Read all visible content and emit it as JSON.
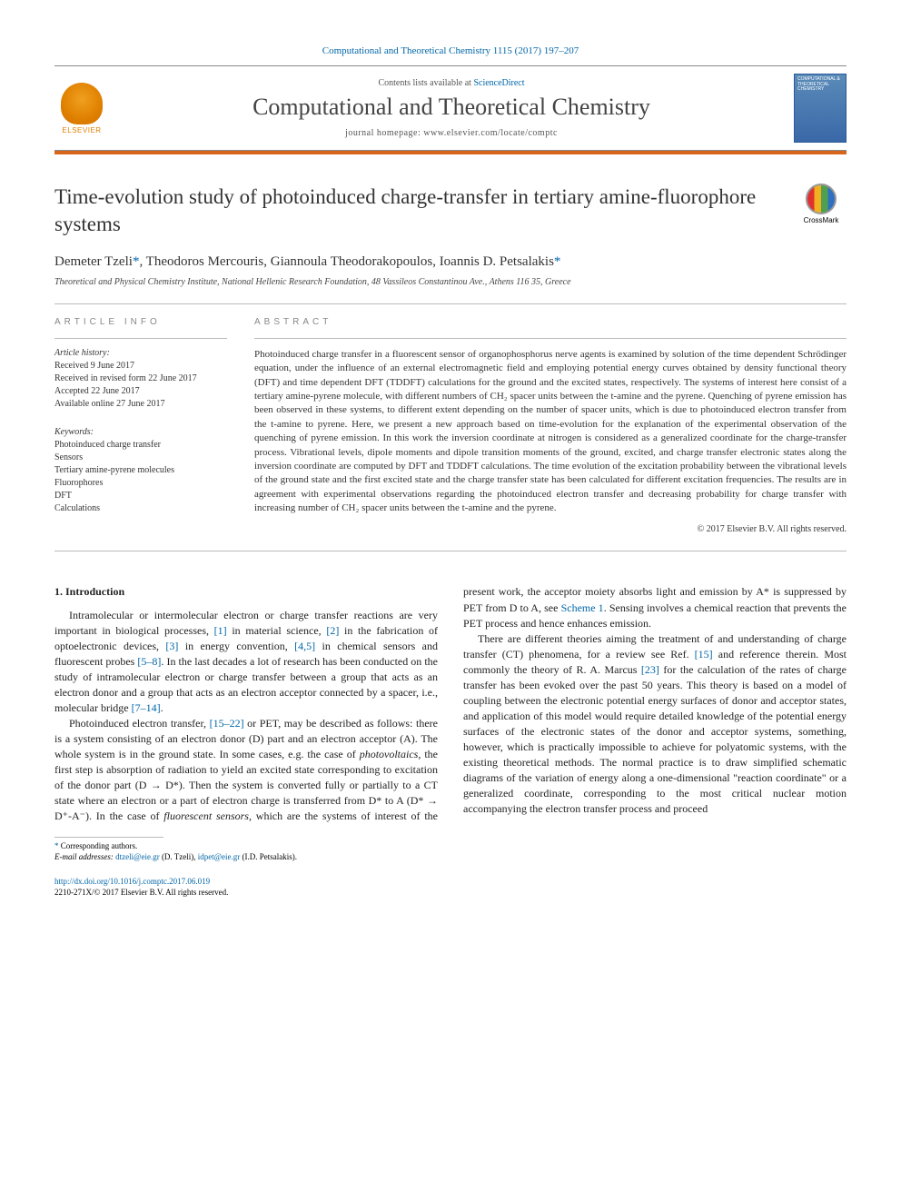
{
  "citation": "Computational and Theoretical Chemistry 1115 (2017) 197–207",
  "masthead": {
    "contents_prefix": "Contents lists available at ",
    "contents_link": "ScienceDirect",
    "journal": "Computational and Theoretical Chemistry",
    "homepage": "journal homepage: www.elsevier.com/locate/comptc",
    "publisher_name": "ELSEVIER",
    "cover_text": "COMPUTATIONAL & THEORETICAL CHEMISTRY"
  },
  "title": "Time-evolution study of photoinduced charge-transfer in tertiary amine-fluorophore systems",
  "crossmark_label": "CrossMark",
  "authors_html": "Demeter Tzeli *, Theodoros Mercouris, Giannoula Theodorakopoulos, Ioannis D. Petsalakis *",
  "authors": {
    "a1": "Demeter Tzeli",
    "a2": "Theodoros Mercouris",
    "a3": "Giannoula Theodorakopoulos",
    "a4": "Ioannis D. Petsalakis",
    "star": "*",
    "sep": ", "
  },
  "affiliation": "Theoretical and Physical Chemistry Institute, National Hellenic Research Foundation, 48 Vassileos Constantinou Ave., Athens 116 35, Greece",
  "info_head": "ARTICLE INFO",
  "abstract_head": "ABSTRACT",
  "history": {
    "label": "Article history:",
    "l1": "Received 9 June 2017",
    "l2": "Received in revised form 22 June 2017",
    "l3": "Accepted 22 June 2017",
    "l4": "Available online 27 June 2017"
  },
  "keywords": {
    "label": "Keywords:",
    "k1": "Photoinduced charge transfer",
    "k2": "Sensors",
    "k3": "Tertiary amine-pyrene molecules",
    "k4": "Fluorophores",
    "k5": "DFT",
    "k6": "Calculations"
  },
  "abstract": "Photoinduced charge transfer in a fluorescent sensor of organophosphorus nerve agents is examined by solution of the time dependent Schrödinger equation, under the influence of an external electromagnetic field and employing potential energy curves obtained by density functional theory (DFT) and time dependent DFT (TDDFT) calculations for the ground and the excited states, respectively. The systems of interest here consist of a tertiary amine-pyrene molecule, with different numbers of CH₂ spacer units between the t-amine and the pyrene. Quenching of pyrene emission has been observed in these systems, to different extent depending on the number of spacer units, which is due to photoinduced electron transfer from the t-amine to pyrene. Here, we present a new approach based on time-evolution for the explanation of the experimental observation of the quenching of pyrene emission. In this work the inversion coordinate at nitrogen is considered as a generalized coordinate for the charge-transfer process. Vibrational levels, dipole moments and dipole transition moments of the ground, excited, and charge transfer electronic states along the inversion coordinate are computed by DFT and TDDFT calculations. The time evolution of the excitation probability between the vibrational levels of the ground state and the first excited state and the charge transfer state has been calculated for different excitation frequencies. The results are in agreement with experimental observations regarding the photoinduced electron transfer and decreasing probability for charge transfer with increasing number of CH₂ spacer units between the t-amine and the pyrene.",
  "copyright": "© 2017 Elsevier B.V. All rights reserved.",
  "section1_head": "1. Introduction",
  "body": {
    "p1a": "Intramolecular or intermolecular electron or charge transfer reactions are very important in biological processes, ",
    "r1": "[1]",
    "p1b": " in material science, ",
    "r2": "[2]",
    "p1c": " in the fabrication of optoelectronic devices, ",
    "r3": "[3]",
    "p1d": " in energy convention, ",
    "r45": "[4,5]",
    "p1e": " in chemical sensors and fluorescent probes ",
    "r58": "[5–8]",
    "p1f": ". In the last decades a lot of research has been conducted on the study of intramolecular electron or charge transfer between a group that acts as an electron donor and a group that acts as an electron acceptor connected by a spacer, i.e., molecular bridge ",
    "r714": "[7–14]",
    "p1g": ".",
    "p2a": "Photoinduced electron transfer, ",
    "r1522": "[15–22]",
    "p2b": " or PET, may be described as follows: there is a system consisting of an electron donor (D) part and an electron acceptor (A). The whole system is in the ground state. In some cases, e.g. the case of ",
    "p2_em1": "photovoltaics",
    "p2c": ", the first step is absorption of radiation to yield an excited state corresponding to excitation of the donor part (D → D*). Then the system is converted fully or partially to a CT state where an electron or ",
    "p3a": "a part of electron charge is transferred from D* to A (D* → D⁺-A⁻). In the case of ",
    "p3_em1": "fluorescent sensors",
    "p3b": ", which are the systems of interest of the present work, the acceptor moiety absorbs light and emission by A* is suppressed by PET from D to A, see ",
    "scheme1": "Scheme 1",
    "p3c": ". Sensing involves a chemical reaction that prevents the PET process and hence enhances emission.",
    "p4a": "There are different theories aiming the treatment of and understanding of charge transfer (CT) phenomena, for a review see Ref. ",
    "r15": "[15]",
    "p4b": " and reference therein. Most commonly the theory of R. A. Marcus ",
    "r23": "[23]",
    "p4c": " for the calculation of the rates of charge transfer has been evoked over the past 50 years. This theory is based on a model of coupling between the electronic potential energy surfaces of donor and acceptor states, and application of this model would require detailed knowledge of the potential energy surfaces of the electronic states of the donor and acceptor systems, something, however, which is practically impossible to achieve for polyatomic systems, with the existing theoretical methods. The normal practice is to draw simplified schematic diagrams of the variation of energy along a one-dimensional \"reaction coordinate\" or a generalized coordinate, corresponding to the most critical nuclear motion accompanying the electron transfer process and proceed"
  },
  "footnote": {
    "corr_label": "Corresponding authors.",
    "email_label": "E-mail addresses:",
    "e1": "dtzeli@eie.gr",
    "e1_who": " (D. Tzeli), ",
    "e2": "idpet@eie.gr",
    "e2_who": " (I.D. Petsalakis)."
  },
  "footer": {
    "doi": "http://dx.doi.org/10.1016/j.comptc.2017.06.019",
    "issn_line": "2210-271X/© 2017 Elsevier B.V. All rights reserved."
  },
  "colors": {
    "link": "#0066a8",
    "accent": "#d8661a",
    "text": "#333333",
    "muted": "#888888"
  }
}
